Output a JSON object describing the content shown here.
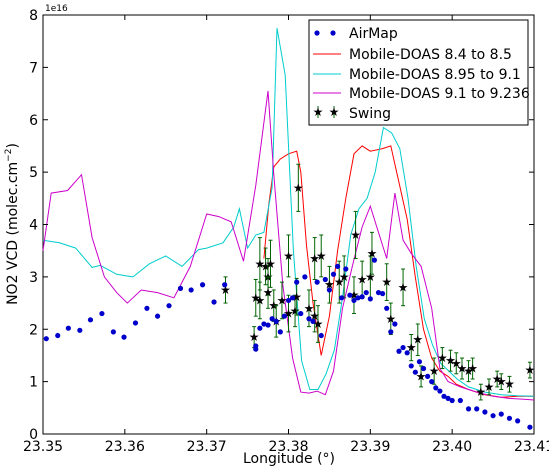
{
  "chart_data": {
    "type": "line",
    "title": "",
    "xlabel": "Longitude (°)",
    "ylabel": "NO2 VCD (molec.cm^-2)",
    "ylabel_main": "NO2 VCD (molec.cm",
    "ylabel_exp": "−2",
    "ylabel_close": ")",
    "y_offset_label": "1e16",
    "xlim": [
      23.35,
      23.41
    ],
    "ylim": [
      0,
      8
    ],
    "x_ticks": [
      23.35,
      23.36,
      23.37,
      23.38,
      23.39,
      23.4,
      23.41
    ],
    "x_tick_labels": [
      "23.35",
      "23.36",
      "23.37",
      "23.38",
      "23.39",
      "23.40",
      "23.41"
    ],
    "y_ticks": [
      0,
      1,
      2,
      3,
      4,
      5,
      6,
      7,
      8
    ],
    "y_tick_labels": [
      "0",
      "1",
      "2",
      "3",
      "4",
      "5",
      "6",
      "7",
      "8"
    ],
    "grid": false,
    "legend_position": "top-right",
    "series": [
      {
        "name": "AirMap",
        "kind": "scatter",
        "color": "#0000cc",
        "x": [
          23.3504,
          23.3518,
          23.3531,
          23.3545,
          23.3558,
          23.3572,
          23.3586,
          23.3599,
          23.3613,
          23.3627,
          23.364,
          23.3654,
          23.3668,
          23.3681,
          23.3695,
          23.3709,
          23.3722,
          23.376,
          23.376,
          23.3765,
          23.377,
          23.3775,
          23.378,
          23.3785,
          23.379,
          23.3795,
          23.38,
          23.3805,
          23.381,
          23.3815,
          23.382,
          23.3825,
          23.383,
          23.3835,
          23.384,
          23.3845,
          23.385,
          23.3855,
          23.386,
          23.3865,
          23.387,
          23.3875,
          23.388,
          23.3885,
          23.389,
          23.3895,
          23.39,
          23.3905,
          23.391,
          23.3915,
          23.392,
          23.3925,
          23.393,
          23.3935,
          23.394,
          23.3945,
          23.395,
          23.3955,
          23.396,
          23.3965,
          23.397,
          23.3975,
          23.398,
          23.3985,
          23.399,
          23.3995,
          23.4,
          23.401,
          23.402,
          23.403,
          23.404,
          23.405,
          23.406,
          23.407,
          23.408,
          23.4095
        ],
        "y": [
          1.82,
          1.88,
          2.02,
          1.98,
          2.18,
          2.3,
          1.95,
          1.85,
          2.12,
          2.4,
          2.25,
          2.45,
          2.78,
          2.75,
          2.85,
          2.52,
          2.85,
          1.62,
          1.68,
          2.02,
          2.1,
          2.08,
          2.2,
          2.15,
          1.95,
          2.25,
          2.55,
          2.6,
          2.9,
          2.3,
          3.0,
          2.2,
          2.15,
          2.9,
          1.88,
          2.95,
          2.75,
          3.05,
          3.2,
          2.6,
          3.15,
          2.65,
          2.55,
          2.6,
          2.62,
          2.7,
          2.58,
          3.32,
          2.7,
          2.68,
          2.4,
          1.95,
          2.1,
          1.58,
          1.65,
          1.55,
          1.3,
          1.18,
          1.38,
          1.25,
          1.1,
          1.0,
          0.88,
          0.82,
          0.72,
          0.68,
          0.64,
          0.64,
          0.48,
          0.48,
          0.42,
          0.35,
          0.38,
          0.3,
          0.25,
          0.13
        ]
      },
      {
        "name": "Mobile-DOAS 8.4 to 8.5",
        "kind": "line",
        "color": "#ff0000",
        "x": [
          23.377,
          23.3776,
          23.3782,
          23.379,
          23.38,
          23.381,
          23.3815,
          23.3822,
          23.383,
          23.384,
          23.385,
          23.386,
          23.387,
          23.388,
          23.389,
          23.39,
          23.3915,
          23.3925,
          23.3935,
          23.3945,
          23.3955,
          23.3965,
          23.3975,
          23.3985,
          23.3995,
          23.4005,
          23.402,
          23.404,
          23.406,
          23.408,
          23.41
        ],
        "y": [
          3.35,
          4.4,
          5.1,
          5.25,
          5.35,
          5.4,
          5.0,
          3.6,
          2.5,
          1.5,
          2.25,
          3.5,
          4.5,
          5.35,
          5.5,
          5.4,
          5.45,
          5.5,
          4.8,
          4.1,
          3.0,
          2.0,
          1.45,
          1.2,
          1.1,
          0.95,
          0.85,
          0.75,
          0.7,
          0.72,
          0.72
        ]
      },
      {
        "name": "Mobile-DOAS 8.95 to 9.1",
        "kind": "line",
        "color": "#00cccc",
        "x": [
          23.35,
          23.352,
          23.354,
          23.356,
          23.357,
          23.359,
          23.361,
          23.363,
          23.365,
          23.367,
          23.369,
          23.37,
          23.372,
          23.3733,
          23.374,
          23.375,
          23.376,
          23.377,
          23.378,
          23.3786,
          23.3796,
          23.3806,
          23.3816,
          23.3826,
          23.3836,
          23.3846,
          23.3856,
          23.3866,
          23.3876,
          23.3886,
          23.3896,
          23.3906,
          23.3916,
          23.3926,
          23.3936,
          23.3946,
          23.3956,
          23.3966,
          23.3976,
          23.3986,
          23.3996,
          23.4006,
          23.402,
          23.404,
          23.406,
          23.408,
          23.41
        ],
        "y": [
          3.7,
          3.65,
          3.55,
          3.18,
          3.22,
          3.05,
          3.0,
          3.25,
          3.4,
          3.2,
          3.52,
          3.55,
          3.65,
          3.95,
          4.3,
          3.55,
          3.8,
          3.85,
          4.7,
          7.75,
          6.85,
          3.5,
          1.4,
          0.85,
          0.85,
          1.15,
          1.6,
          2.6,
          3.8,
          4.3,
          4.5,
          5.0,
          5.85,
          5.75,
          5.45,
          4.5,
          3.2,
          2.2,
          1.7,
          1.35,
          1.2,
          1.05,
          0.9,
          0.8,
          0.75,
          0.73,
          0.72
        ]
      },
      {
        "name": "Mobile-DOAS 9.1 to 9.236",
        "kind": "line",
        "color": "#cc00cc",
        "x": [
          23.35,
          23.351,
          23.353,
          23.3547,
          23.356,
          23.3575,
          23.359,
          23.3603,
          23.362,
          23.364,
          23.366,
          23.368,
          23.37,
          23.3715,
          23.373,
          23.3745,
          23.376,
          23.3775,
          23.3782,
          23.3793,
          23.3805,
          23.3815,
          23.3825,
          23.3835,
          23.3845,
          23.3855,
          23.3866,
          23.3878,
          23.389,
          23.39,
          23.391,
          23.392,
          23.393,
          23.394,
          23.395,
          23.3962,
          23.3975,
          23.3985,
          23.3995,
          23.401,
          23.403,
          23.405,
          23.407,
          23.409,
          23.41
        ],
        "y": [
          3.5,
          4.6,
          4.65,
          4.95,
          3.75,
          3.0,
          2.7,
          2.5,
          2.75,
          2.7,
          2.6,
          3.2,
          4.2,
          4.15,
          4.05,
          3.3,
          4.75,
          6.55,
          4.95,
          2.85,
          1.45,
          0.8,
          0.78,
          0.82,
          0.75,
          1.2,
          2.4,
          3.2,
          3.95,
          4.35,
          3.85,
          3.35,
          4.6,
          3.7,
          3.45,
          3.2,
          2.4,
          1.25,
          1.0,
          0.9,
          0.8,
          0.72,
          0.68,
          0.66,
          0.65
        ]
      },
      {
        "name": "Swing",
        "kind": "errorbar",
        "color": "#006400",
        "x": [
          23.3723,
          23.3758,
          23.376,
          23.3765,
          23.3765,
          23.3772,
          23.3775,
          23.3775,
          23.3778,
          23.3782,
          23.3785,
          23.3792,
          23.38,
          23.38,
          23.3808,
          23.381,
          23.3812,
          23.3825,
          23.3832,
          23.3832,
          23.3836,
          23.384,
          23.385,
          23.3862,
          23.3868,
          23.388,
          23.3882,
          23.389,
          23.39,
          23.3902,
          23.392,
          23.3925,
          23.394,
          23.395,
          23.3958,
          23.3962,
          23.3978,
          23.3988,
          23.3998,
          23.4005,
          23.4012,
          23.402,
          23.4025,
          23.4035,
          23.4045,
          23.4055,
          23.406,
          23.407,
          23.4095
        ],
        "y": [
          2.75,
          1.85,
          2.6,
          3.25,
          2.55,
          3.2,
          3.0,
          2.7,
          3.25,
          2.45,
          2.15,
          2.55,
          2.3,
          3.4,
          2.35,
          2.62,
          4.7,
          2.4,
          3.35,
          2.25,
          2.1,
          3.4,
          2.85,
          2.9,
          3.0,
          2.65,
          3.8,
          2.95,
          3.0,
          3.45,
          2.9,
          2.2,
          2.8,
          1.65,
          1.8,
          1.1,
          1.2,
          1.45,
          1.4,
          1.35,
          1.25,
          1.2,
          1.25,
          0.8,
          0.9,
          1.05,
          1.0,
          0.95,
          1.22
        ],
        "err": [
          0.25,
          0.2,
          0.35,
          0.5,
          0.35,
          0.35,
          0.35,
          0.3,
          0.45,
          0.3,
          0.3,
          0.35,
          0.35,
          0.4,
          0.3,
          0.35,
          0.45,
          0.35,
          0.4,
          0.3,
          0.35,
          0.4,
          0.35,
          0.4,
          0.4,
          0.35,
          0.45,
          0.35,
          0.4,
          0.4,
          0.35,
          0.3,
          0.35,
          0.25,
          0.3,
          0.2,
          0.25,
          0.2,
          0.2,
          0.2,
          0.2,
          0.2,
          0.2,
          0.15,
          0.15,
          0.15,
          0.15,
          0.15,
          0.15
        ]
      }
    ]
  }
}
